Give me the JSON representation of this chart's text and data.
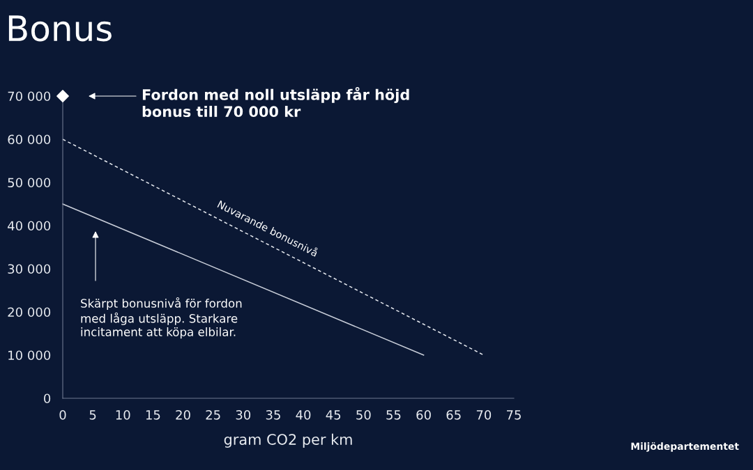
{
  "chart_data": {
    "type": "line",
    "title": "Bonus",
    "xlabel": "gram CO2 per km",
    "xlim": [
      0,
      75
    ],
    "xticks": [
      0,
      5,
      10,
      15,
      20,
      25,
      30,
      35,
      40,
      45,
      50,
      55,
      60,
      65,
      70,
      75
    ],
    "ylim": [
      0,
      70000
    ],
    "yticks": [
      {
        "value": 0,
        "label": "0"
      },
      {
        "value": 10000,
        "label": "10 000"
      },
      {
        "value": 20000,
        "label": "20 000"
      },
      {
        "value": 30000,
        "label": "30 000"
      },
      {
        "value": 40000,
        "label": "40 000"
      },
      {
        "value": 50000,
        "label": "50 000"
      },
      {
        "value": 60000,
        "label": "60 000"
      },
      {
        "value": 70000,
        "label": "70 000"
      }
    ],
    "grid": false,
    "legend": false,
    "series": [
      {
        "color": "#c9ced9",
        "line_style": "solid",
        "x": [
          0,
          60
        ],
        "values": [
          45000,
          10000
        ]
      },
      {
        "color": "#e6e9ef",
        "line_style": "dashed",
        "x": [
          0,
          70
        ],
        "values": [
          60000,
          10000
        ]
      },
      {
        "type": "scatter",
        "color": "#ffffff",
        "marker": "diamond",
        "x": [
          0
        ],
        "values": [
          70000
        ]
      }
    ],
    "annotations": [
      "Fordon med noll utsläpp får höjd\nbonus till 70 000 kr",
      "Skärpt bonusnivå för fordon\nmed låga utsläpp. Starkare\nincitament att köpa elbilar.",
      {
        "text": "Nuvarande bonusnivå",
        "x": 34,
        "y": 36000
      },
      "Miljödepartementet"
    ]
  }
}
